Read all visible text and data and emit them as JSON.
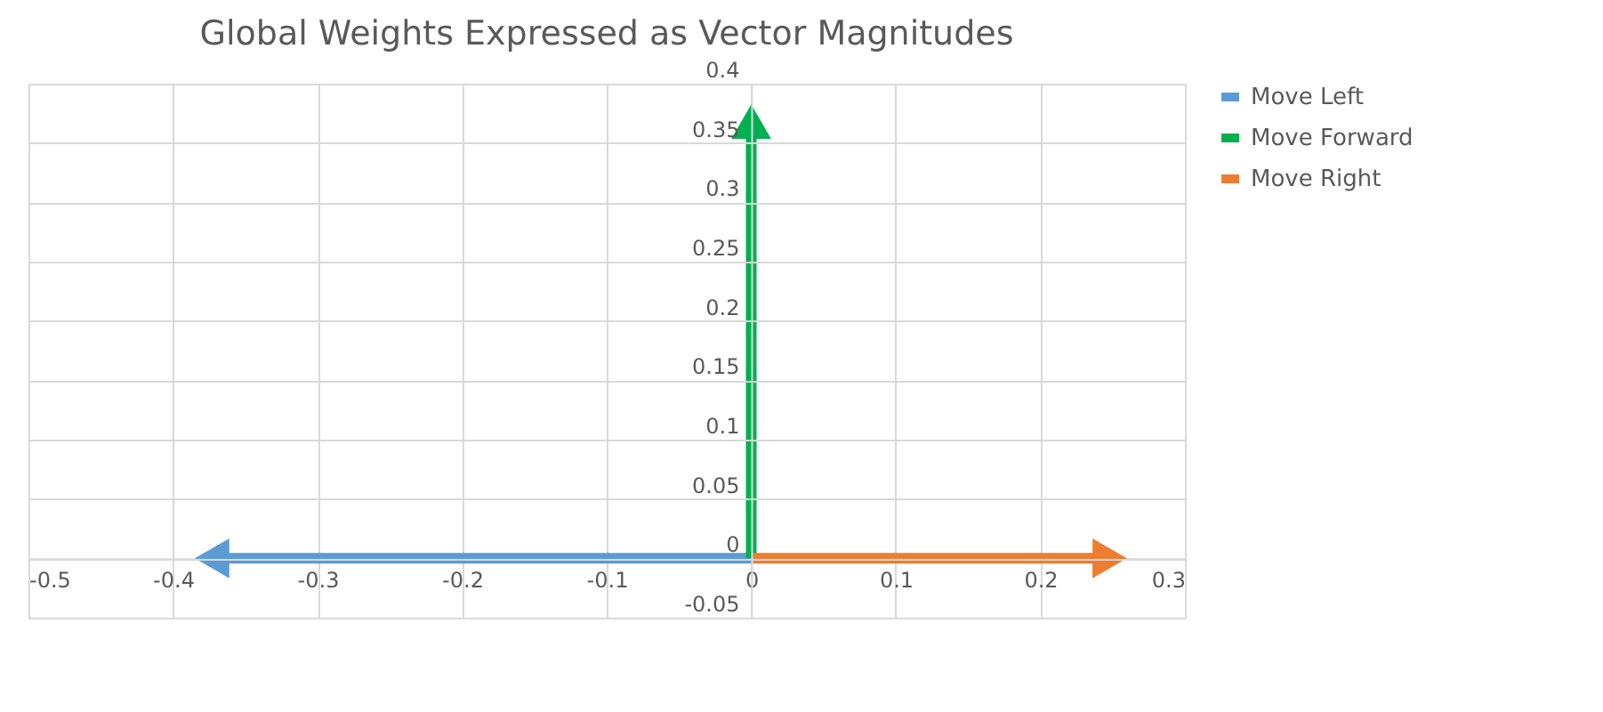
{
  "chart_data": {
    "type": "line",
    "title": "Global Weights Expressed as Vector Magnitudes",
    "xlim": [
      -0.5,
      0.3
    ],
    "xticks": [
      -0.5,
      -0.4,
      -0.3,
      -0.2,
      -0.1,
      0,
      0.1,
      0.2,
      0.3
    ],
    "ylim": [
      -0.05,
      0.4
    ],
    "yticks": [
      -0.05,
      0,
      0.05,
      0.1,
      0.15,
      0.2,
      0.25,
      0.3,
      0.35,
      0.4
    ],
    "grid": true,
    "legend": "right",
    "series": [
      {
        "name": "Move Left",
        "color": "#5b9bd5",
        "x": [
          0,
          -0.373
        ],
        "values": [
          0,
          0
        ]
      },
      {
        "name": "Move Forward",
        "color": "#00b050",
        "x": [
          0,
          0
        ],
        "values": [
          0,
          0.368
        ]
      },
      {
        "name": "Move Right",
        "color": "#ed7d31",
        "x": [
          0,
          0.248
        ],
        "values": [
          0,
          0
        ]
      }
    ]
  }
}
